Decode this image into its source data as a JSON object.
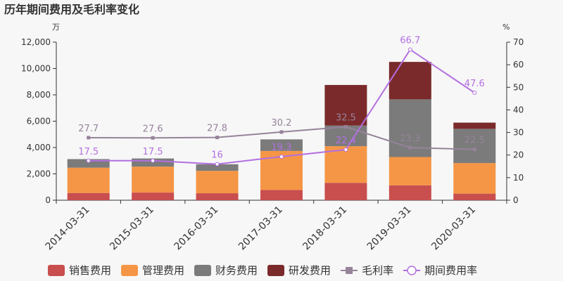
{
  "chart_data": {
    "type": "bar",
    "title": "历年期间费用及毛利率变化",
    "y_left_unit": "万",
    "y_right_unit": "%",
    "ylim_left": [
      0,
      12000
    ],
    "ylim_right": [
      0,
      70
    ],
    "y_left_ticks": [
      0,
      2000,
      4000,
      6000,
      8000,
      10000,
      12000
    ],
    "y_right_ticks": [
      0,
      10,
      20,
      30,
      40,
      50,
      60,
      70
    ],
    "y_left_tick_labels": [
      "0",
      "2,000",
      "4,000",
      "6,000",
      "8,000",
      "10,000",
      "12,000"
    ],
    "y_right_tick_labels": [
      "0",
      "10",
      "20",
      "30",
      "40",
      "50",
      "60",
      "70"
    ],
    "categories": [
      "2014-03-31",
      "2015-03-31",
      "2016-03-31",
      "2017-03-31",
      "2018-03-31",
      "2019-03-31",
      "2020-03-31"
    ],
    "stacked_series": [
      {
        "name": "销售费用",
        "color": "#c94e4e",
        "values": [
          550,
          580,
          530,
          780,
          1320,
          1130,
          500
        ]
      },
      {
        "name": "管理费用",
        "color": "#f59646",
        "values": [
          1920,
          1970,
          1700,
          2960,
          2780,
          2150,
          2320
        ]
      },
      {
        "name": "财务费用",
        "color": "#7b7b7b",
        "values": [
          650,
          620,
          500,
          880,
          1570,
          4380,
          2600
        ]
      },
      {
        "name": "研发费用",
        "color": "#7a2a2a",
        "values": [
          0,
          0,
          0,
          0,
          3080,
          2840,
          470
        ]
      }
    ],
    "line_series": [
      {
        "name": "毛利率",
        "color": "#96839a",
        "values": [
          27.7,
          27.6,
          27.8,
          30.2,
          32.5,
          23.3,
          22.5
        ],
        "labels": [
          "27.7",
          "27.6",
          "27.8",
          "30.2",
          "32.5",
          "23.3",
          "22.5"
        ]
      },
      {
        "name": "期间费用率",
        "color": "#b36fe0",
        "values": [
          17.5,
          17.5,
          16,
          19.3,
          22.4,
          66.7,
          47.6
        ],
        "labels": [
          "17.5",
          "17.5",
          "16",
          "19.3",
          "22.4",
          "66.7",
          "47.6"
        ]
      }
    ],
    "grid": false,
    "legend_position": "bottom"
  }
}
